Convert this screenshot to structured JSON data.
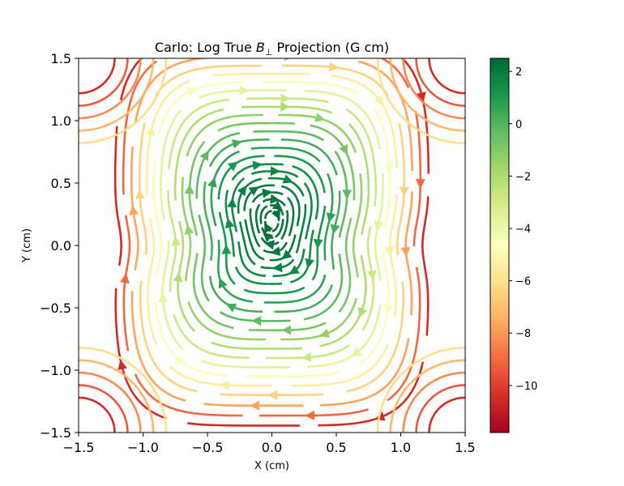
{
  "chart_data": {
    "type": "streamplot",
    "title": "Carlo: Log True B⊥ Projection (G cm)",
    "title_parts": {
      "prefix": "Carlo: Log True ",
      "symbol": "B",
      "subscript": "⊥",
      "suffix": " Projection (G cm)"
    },
    "xlabel": "X (cm)",
    "ylabel": "Y (cm)",
    "xlim": [
      -1.5,
      1.5
    ],
    "ylim": [
      -1.5,
      1.5
    ],
    "x_ticks": [
      -1.5,
      -1.0,
      -0.5,
      0.0,
      0.5,
      1.0,
      1.5
    ],
    "x_tick_labels": [
      "−1.5",
      "−1.0",
      "−0.5",
      "0.0",
      "0.5",
      "1.0",
      "1.5"
    ],
    "y_ticks": [
      -1.5,
      -1.0,
      -0.5,
      0.0,
      0.5,
      1.0,
      1.5
    ],
    "y_tick_labels": [
      "−1.5",
      "−1.0",
      "−0.5",
      "0.0",
      "0.5",
      "1.0",
      "1.5"
    ],
    "colormap": "RdYlGn",
    "colorbar": {
      "range": [
        -11.8,
        2.5
      ],
      "ticks": [
        2,
        0,
        -2,
        -4,
        -6,
        -8,
        -10
      ],
      "tick_labels": [
        "2",
        "0",
        "−2",
        "−4",
        "−6",
        "−8",
        "−10"
      ]
    },
    "field": {
      "center": [
        0.0,
        0.2
      ],
      "rotation": "clockwise",
      "levels": [
        0.08,
        0.13,
        0.18,
        0.24,
        0.3,
        0.36,
        0.42,
        0.48,
        0.55,
        0.62,
        0.69,
        0.76,
        0.83,
        0.9,
        0.97,
        1.04,
        1.11,
        1.18,
        1.25,
        1.32,
        1.4,
        1.48,
        1.56
      ]
    },
    "grid": false
  }
}
